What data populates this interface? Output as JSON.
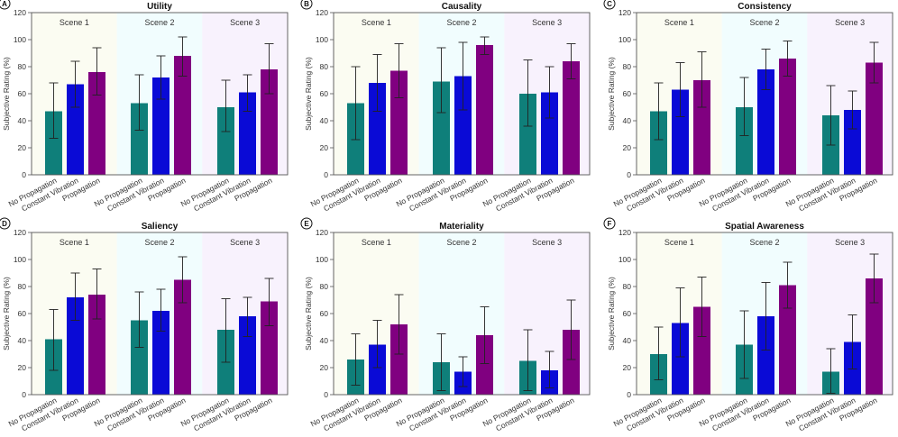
{
  "figure": {
    "conditions": [
      "No Propagation",
      "Constant Vibration",
      "Propagation"
    ],
    "scenes": [
      "Scene 1",
      "Scene 2",
      "Scene 3"
    ],
    "colors": {
      "No Propagation": "#0f7f7a",
      "Constant Vibration": "#0a0ad6",
      "Propagation": "#800080",
      "scene_bg": [
        "#fbfcf2",
        "#f1fdfe",
        "#f8f2fd"
      ],
      "error_bar": "#222222"
    }
  },
  "chart_data": [
    {
      "panel": "A",
      "type": "bar",
      "title": "Utility",
      "xlabel": "",
      "ylabel": "Subjective Rating (%)",
      "ylim": [
        0,
        120
      ],
      "yticks": [
        0,
        20,
        40,
        60,
        80,
        100,
        120
      ],
      "categories": [
        "Scene 1",
        "Scene 2",
        "Scene 3"
      ],
      "series": [
        {
          "name": "No Propagation",
          "values": [
            47,
            53,
            50
          ],
          "err_low": [
            27,
            33,
            32
          ],
          "err_high": [
            68,
            74,
            70
          ]
        },
        {
          "name": "Constant Vibration",
          "values": [
            67,
            72,
            61
          ],
          "err_low": [
            50,
            56,
            47
          ],
          "err_high": [
            84,
            88,
            74
          ]
        },
        {
          "name": "Propagation",
          "values": [
            76,
            88,
            78
          ],
          "err_low": [
            59,
            73,
            60
          ],
          "err_high": [
            94,
            102,
            97
          ]
        }
      ]
    },
    {
      "panel": "B",
      "type": "bar",
      "title": "Causality",
      "xlabel": "",
      "ylabel": "Subjective Rating (%)",
      "ylim": [
        0,
        120
      ],
      "yticks": [
        0,
        20,
        40,
        60,
        80,
        100,
        120
      ],
      "categories": [
        "Scene 1",
        "Scene 2",
        "Scene 3"
      ],
      "series": [
        {
          "name": "No Propagation",
          "values": [
            53,
            69,
            60
          ],
          "err_low": [
            26,
            46,
            36
          ],
          "err_high": [
            80,
            94,
            85
          ]
        },
        {
          "name": "Constant Vibration",
          "values": [
            68,
            73,
            61
          ],
          "err_low": [
            47,
            48,
            42
          ],
          "err_high": [
            89,
            98,
            80
          ]
        },
        {
          "name": "Propagation",
          "values": [
            77,
            96,
            84
          ],
          "err_low": [
            57,
            89,
            71
          ],
          "err_high": [
            97,
            102,
            97
          ]
        }
      ]
    },
    {
      "panel": "C",
      "type": "bar",
      "title": "Consistency",
      "xlabel": "",
      "ylabel": "Subjective Rating (%)",
      "ylim": [
        0,
        120
      ],
      "yticks": [
        0,
        20,
        40,
        60,
        80,
        100,
        120
      ],
      "categories": [
        "Scene 1",
        "Scene 2",
        "Scene 3"
      ],
      "series": [
        {
          "name": "No Propagation",
          "values": [
            47,
            50,
            44
          ],
          "err_low": [
            26,
            29,
            22
          ],
          "err_high": [
            68,
            72,
            66
          ]
        },
        {
          "name": "Constant Vibration",
          "values": [
            63,
            78,
            48
          ],
          "err_low": [
            43,
            63,
            34
          ],
          "err_high": [
            83,
            93,
            62
          ]
        },
        {
          "name": "Propagation",
          "values": [
            70,
            86,
            83
          ],
          "err_low": [
            50,
            73,
            68
          ],
          "err_high": [
            91,
            99,
            98
          ]
        }
      ]
    },
    {
      "panel": "D",
      "type": "bar",
      "title": "Saliency",
      "xlabel": "",
      "ylabel": "Subjective Rating (%)",
      "ylim": [
        0,
        120
      ],
      "yticks": [
        0,
        20,
        40,
        60,
        80,
        100,
        120
      ],
      "categories": [
        "Scene 1",
        "Scene 2",
        "Scene 3"
      ],
      "series": [
        {
          "name": "No Propagation",
          "values": [
            41,
            55,
            48
          ],
          "err_low": [
            18,
            35,
            24
          ],
          "err_high": [
            63,
            76,
            71
          ]
        },
        {
          "name": "Constant Vibration",
          "values": [
            72,
            62,
            58
          ],
          "err_low": [
            55,
            47,
            43
          ],
          "err_high": [
            90,
            78,
            72
          ]
        },
        {
          "name": "Propagation",
          "values": [
            74,
            85,
            69
          ],
          "err_low": [
            56,
            68,
            51
          ],
          "err_high": [
            93,
            102,
            86
          ]
        }
      ]
    },
    {
      "panel": "E",
      "type": "bar",
      "title": "Materiality",
      "xlabel": "",
      "ylabel": "Subjective Rating (%)",
      "ylim": [
        0,
        120
      ],
      "yticks": [
        0,
        20,
        40,
        60,
        80,
        100,
        120
      ],
      "categories": [
        "Scene 1",
        "Scene 2",
        "Scene 3"
      ],
      "series": [
        {
          "name": "No Propagation",
          "values": [
            26,
            24,
            25
          ],
          "err_low": [
            7,
            3,
            3
          ],
          "err_high": [
            45,
            45,
            48
          ]
        },
        {
          "name": "Constant Vibration",
          "values": [
            37,
            17,
            18
          ],
          "err_low": [
            20,
            6,
            5
          ],
          "err_high": [
            55,
            28,
            32
          ]
        },
        {
          "name": "Propagation",
          "values": [
            52,
            44,
            48
          ],
          "err_low": [
            30,
            23,
            26
          ],
          "err_high": [
            74,
            65,
            70
          ]
        }
      ]
    },
    {
      "panel": "F",
      "type": "bar",
      "title": "Spatial Awareness",
      "xlabel": "",
      "ylabel": "Subjective Rating (%)",
      "ylim": [
        0,
        120
      ],
      "yticks": [
        0,
        20,
        40,
        60,
        80,
        100,
        120
      ],
      "categories": [
        "Scene 1",
        "Scene 2",
        "Scene 3"
      ],
      "series": [
        {
          "name": "No Propagation",
          "values": [
            30,
            37,
            17
          ],
          "err_low": [
            11,
            12,
            1
          ],
          "err_high": [
            50,
            62,
            34
          ]
        },
        {
          "name": "Constant Vibration",
          "values": [
            53,
            58,
            39
          ],
          "err_low": [
            28,
            33,
            19
          ],
          "err_high": [
            79,
            83,
            59
          ]
        },
        {
          "name": "Propagation",
          "values": [
            65,
            81,
            86
          ],
          "err_low": [
            43,
            64,
            68
          ],
          "err_high": [
            87,
            98,
            104
          ]
        }
      ]
    }
  ]
}
